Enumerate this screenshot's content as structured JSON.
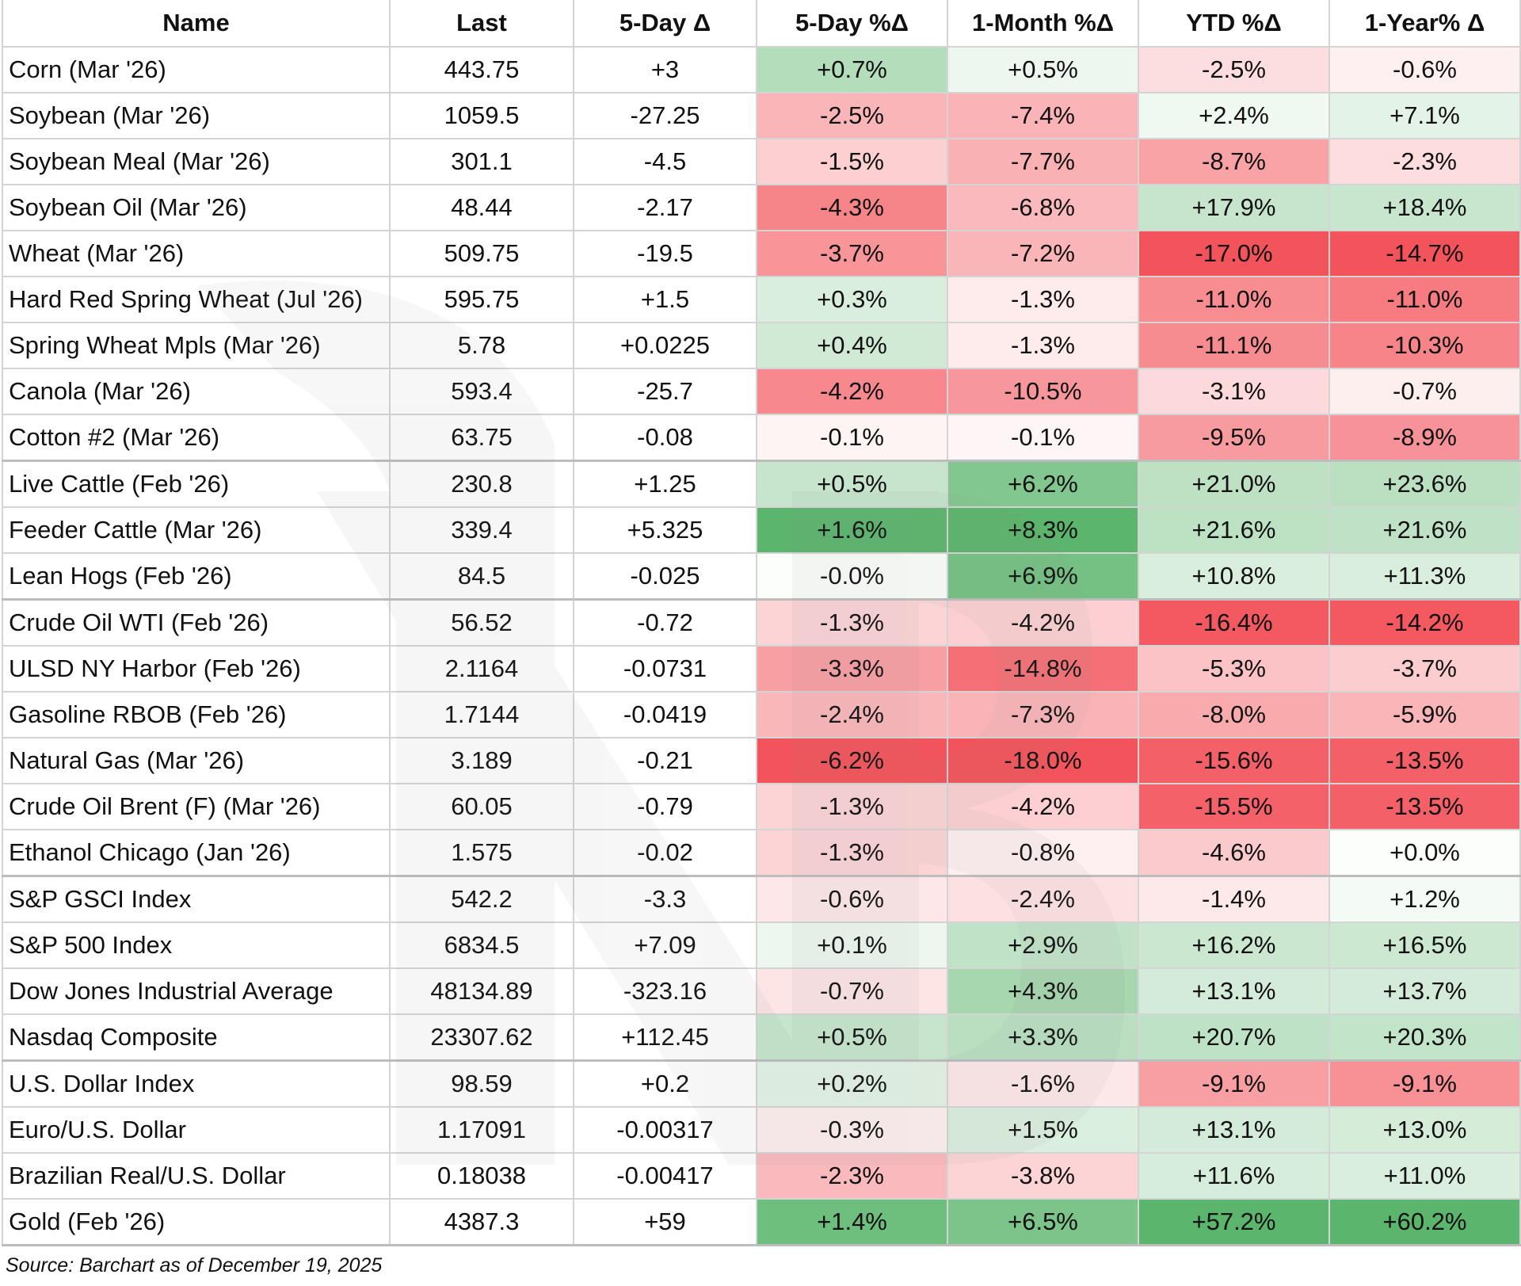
{
  "chart_data": {
    "type": "table",
    "headers": [
      "Name",
      "Last",
      "5-Day Δ",
      "5-Day %Δ",
      "1-Month %Δ",
      "YTD %Δ",
      "1-Year% Δ"
    ],
    "rows": [
      {
        "name": "Corn (Mar '26)",
        "last": "443.75",
        "d5": "+3",
        "p5": "+0.7%",
        "m1": "+0.5%",
        "ytd": "-2.5%",
        "y1": "-0.6%"
      },
      {
        "name": "Soybean (Mar '26)",
        "last": "1059.5",
        "d5": "-27.25",
        "p5": "-2.5%",
        "m1": "-7.4%",
        "ytd": "+2.4%",
        "y1": "+7.1%"
      },
      {
        "name": "Soybean Meal (Mar '26)",
        "last": "301.1",
        "d5": "-4.5",
        "p5": "-1.5%",
        "m1": "-7.7%",
        "ytd": "-8.7%",
        "y1": "-2.3%"
      },
      {
        "name": "Soybean Oil (Mar '26)",
        "last": "48.44",
        "d5": "-2.17",
        "p5": "-4.3%",
        "m1": "-6.8%",
        "ytd": "+17.9%",
        "y1": "+18.4%"
      },
      {
        "name": "Wheat (Mar '26)",
        "last": "509.75",
        "d5": "-19.5",
        "p5": "-3.7%",
        "m1": "-7.2%",
        "ytd": "-17.0%",
        "y1": "-14.7%"
      },
      {
        "name": "Hard Red Spring Wheat (Jul '26)",
        "last": "595.75",
        "d5": "+1.5",
        "p5": "+0.3%",
        "m1": "-1.3%",
        "ytd": "-11.0%",
        "y1": "-11.0%"
      },
      {
        "name": "Spring Wheat Mpls (Mar '26)",
        "last": "5.78",
        "d5": "+0.0225",
        "p5": "+0.4%",
        "m1": "-1.3%",
        "ytd": "-11.1%",
        "y1": "-10.3%"
      },
      {
        "name": "Canola (Mar '26)",
        "last": "593.4",
        "d5": "-25.7",
        "p5": "-4.2%",
        "m1": "-10.5%",
        "ytd": "-3.1%",
        "y1": "-0.7%"
      },
      {
        "name": "Cotton #2 (Mar '26)",
        "last": "63.75",
        "d5": "-0.08",
        "p5": "-0.1%",
        "m1": "-0.1%",
        "ytd": "-9.5%",
        "y1": "-8.9%"
      },
      {
        "name": "Live Cattle (Feb '26)",
        "last": "230.8",
        "d5": "+1.25",
        "p5": "+0.5%",
        "m1": "+6.2%",
        "ytd": "+21.0%",
        "y1": "+23.6%"
      },
      {
        "name": "Feeder Cattle (Mar '26)",
        "last": "339.4",
        "d5": "+5.325",
        "p5": "+1.6%",
        "m1": "+8.3%",
        "ytd": "+21.6%",
        "y1": "+21.6%"
      },
      {
        "name": "Lean Hogs (Feb '26)",
        "last": "84.5",
        "d5": "-0.025",
        "p5": "-0.0%",
        "m1": "+6.9%",
        "ytd": "+10.8%",
        "y1": "+11.3%"
      },
      {
        "name": "Crude Oil WTI (Feb '26)",
        "last": "56.52",
        "d5": "-0.72",
        "p5": "-1.3%",
        "m1": "-4.2%",
        "ytd": "-16.4%",
        "y1": "-14.2%"
      },
      {
        "name": "ULSD NY Harbor (Feb '26)",
        "last": "2.1164",
        "d5": "-0.0731",
        "p5": "-3.3%",
        "m1": "-14.8%",
        "ytd": "-5.3%",
        "y1": "-3.7%"
      },
      {
        "name": "Gasoline RBOB (Feb '26)",
        "last": "1.7144",
        "d5": "-0.0419",
        "p5": "-2.4%",
        "m1": "-7.3%",
        "ytd": "-8.0%",
        "y1": "-5.9%"
      },
      {
        "name": "Natural Gas (Mar '26)",
        "last": "3.189",
        "d5": "-0.21",
        "p5": "-6.2%",
        "m1": "-18.0%",
        "ytd": "-15.6%",
        "y1": "-13.5%"
      },
      {
        "name": "Crude Oil Brent (F) (Mar '26)",
        "last": "60.05",
        "d5": "-0.79",
        "p5": "-1.3%",
        "m1": "-4.2%",
        "ytd": "-15.5%",
        "y1": "-13.5%"
      },
      {
        "name": "Ethanol Chicago (Jan '26)",
        "last": "1.575",
        "d5": "-0.02",
        "p5": "-1.3%",
        "m1": "-0.8%",
        "ytd": "-4.6%",
        "y1": "+0.0%"
      },
      {
        "name": "S&P GSCI Index",
        "last": "542.2",
        "d5": "-3.3",
        "p5": "-0.6%",
        "m1": "-2.4%",
        "ytd": "-1.4%",
        "y1": "+1.2%"
      },
      {
        "name": "S&P 500 Index",
        "last": "6834.5",
        "d5": "+7.09",
        "p5": "+0.1%",
        "m1": "+2.9%",
        "ytd": "+16.2%",
        "y1": "+16.5%"
      },
      {
        "name": "Dow Jones Industrial Average",
        "last": "48134.89",
        "d5": "-323.16",
        "p5": "-0.7%",
        "m1": "+4.3%",
        "ytd": "+13.1%",
        "y1": "+13.7%"
      },
      {
        "name": "Nasdaq Composite",
        "last": "23307.62",
        "d5": "+112.45",
        "p5": "+0.5%",
        "m1": "+3.3%",
        "ytd": "+20.7%",
        "y1": "+20.3%"
      },
      {
        "name": "U.S. Dollar Index",
        "last": "98.59",
        "d5": "+0.2",
        "p5": "+0.2%",
        "m1": "-1.6%",
        "ytd": "-9.1%",
        "y1": "-9.1%"
      },
      {
        "name": "Euro/U.S. Dollar",
        "last": "1.17091",
        "d5": "-0.00317",
        "p5": "-0.3%",
        "m1": "+1.5%",
        "ytd": "+13.1%",
        "y1": "+13.0%"
      },
      {
        "name": "Brazilian Real/U.S. Dollar",
        "last": "0.18038",
        "d5": "-0.00417",
        "p5": "-2.3%",
        "m1": "-3.8%",
        "ytd": "+11.6%",
        "y1": "+11.0%"
      },
      {
        "name": "Gold (Feb '26)",
        "last": "4387.3",
        "d5": "+59",
        "p5": "+1.4%",
        "m1": "+6.5%",
        "ytd": "+57.2%",
        "y1": "+60.2%"
      }
    ],
    "group_breaks_before_rows": [
      9,
      12,
      18,
      22
    ],
    "heatmap_columns": [
      "p5",
      "m1",
      "ytd",
      "y1"
    ],
    "colors": {
      "positive_max": "#5bb56c",
      "negative_max": "#f3535a",
      "neutral": "#ffffff"
    },
    "source": "Source: Barchart as of December 19, 2025"
  }
}
